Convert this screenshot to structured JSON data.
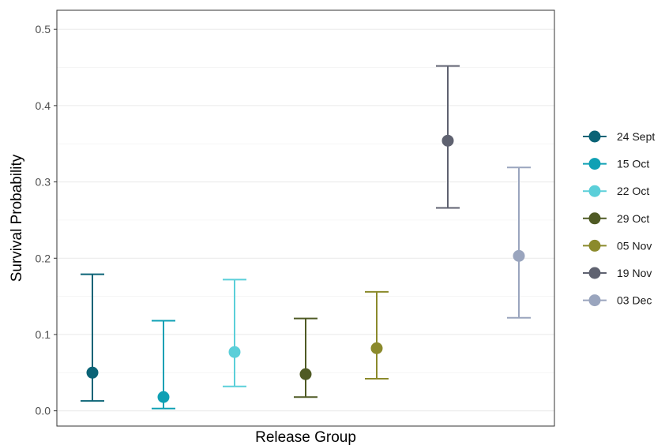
{
  "chart_data": {
    "type": "errorbar",
    "xlabel": "Release Group",
    "ylabel": "Survival Probability",
    "ylim": [
      -0.02,
      0.525
    ],
    "yticks": [
      "0.0",
      "0.1",
      "0.2",
      "0.3",
      "0.4",
      "0.5"
    ],
    "grid": "horizontal",
    "legend_position": "right",
    "series": [
      {
        "name": "24 Sept",
        "estimate": 0.05,
        "lower": 0.013,
        "upper": 0.179,
        "color": "#0a6376"
      },
      {
        "name": "15 Oct",
        "estimate": 0.018,
        "lower": 0.003,
        "upper": 0.118,
        "color": "#0fa0b4"
      },
      {
        "name": "22 Oct",
        "estimate": 0.077,
        "lower": 0.032,
        "upper": 0.172,
        "color": "#5bcfd9"
      },
      {
        "name": "29 Oct",
        "estimate": 0.048,
        "lower": 0.018,
        "upper": 0.121,
        "color": "#4f5a24"
      },
      {
        "name": "05 Nov",
        "estimate": 0.082,
        "lower": 0.042,
        "upper": 0.156,
        "color": "#8b8a2c"
      },
      {
        "name": "19 Nov",
        "estimate": 0.354,
        "lower": 0.266,
        "upper": 0.452,
        "color": "#5f6270"
      },
      {
        "name": "03 Dec",
        "estimate": 0.203,
        "lower": 0.122,
        "upper": 0.319,
        "color": "#9aa5be"
      }
    ]
  }
}
